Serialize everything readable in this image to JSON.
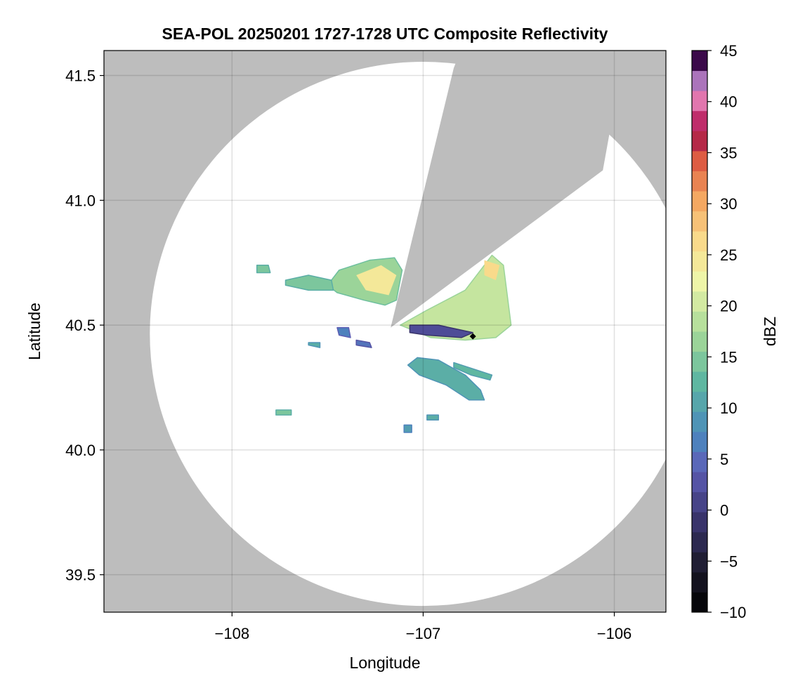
{
  "chart_data": {
    "type": "heatmap",
    "title": "SEA-POL 20250201 1727-1728 UTC Composite Reflectivity",
    "xlabel": "Longitude",
    "ylabel": "Latitude",
    "xlim": [
      -108.67,
      -105.73
    ],
    "ylim": [
      39.35,
      41.6
    ],
    "xticks": [
      -108,
      -107,
      -106
    ],
    "xtick_labels": [
      "−108",
      "−107",
      "−106"
    ],
    "yticks": [
      39.5,
      40.0,
      40.5,
      41.0,
      41.5
    ],
    "ytick_labels": [
      "39.5",
      "40.0",
      "40.5",
      "41.0",
      "41.5"
    ],
    "grid": true,
    "background_color": "#bdbdbd",
    "radar_site": {
      "lon": -106.74,
      "lat": 40.455,
      "marker": "diamond"
    },
    "coverage": {
      "center_lon": -107.0,
      "center_lat": 40.465,
      "radius_lon": 1.43,
      "radius_lat": 1.09,
      "blocked_sector": {
        "apex_lon": -107.17,
        "apex_lat": 40.49,
        "edge_points": [
          [
            -106.84,
            41.53
          ],
          [
            -106.06,
            41.12
          ]
        ]
      }
    },
    "colorbar": {
      "label": "dBZ",
      "min": -10,
      "max": 45,
      "step": 2,
      "ticks": [
        -10,
        -5,
        0,
        5,
        10,
        15,
        20,
        25,
        30,
        35,
        40,
        45
      ],
      "tick_labels": [
        "−10",
        "−5",
        "0",
        "5",
        "10",
        "15",
        "20",
        "25",
        "30",
        "35",
        "40",
        "45"
      ],
      "colormap": "Spectral_r"
    },
    "echoes": [
      {
        "name": "north-cell",
        "points": [
          [
            -107.5,
            40.66
          ],
          [
            -107.44,
            40.72
          ],
          [
            -107.28,
            40.76
          ],
          [
            -107.15,
            40.77
          ],
          [
            -107.11,
            40.72
          ],
          [
            -107.14,
            40.6
          ],
          [
            -107.2,
            40.58
          ],
          [
            -107.31,
            40.6
          ],
          [
            -107.45,
            40.63
          ]
        ],
        "dbz": 17,
        "core": {
          "points": [
            [
              -107.35,
              40.7
            ],
            [
              -107.22,
              40.74
            ],
            [
              -107.14,
              40.7
            ],
            [
              -107.18,
              40.62
            ],
            [
              -107.3,
              40.64
            ]
          ],
          "dbz": 25
        }
      },
      {
        "name": "northwest-tail",
        "points": [
          [
            -107.72,
            40.68
          ],
          [
            -107.6,
            40.7
          ],
          [
            -107.48,
            40.68
          ],
          [
            -107.47,
            40.64
          ],
          [
            -107.6,
            40.64
          ],
          [
            -107.72,
            40.66
          ]
        ],
        "dbz": 15
      },
      {
        "name": "northwest-isolated",
        "points": [
          [
            -107.87,
            40.74
          ],
          [
            -107.81,
            40.74
          ],
          [
            -107.8,
            40.71
          ],
          [
            -107.87,
            40.71
          ]
        ],
        "dbz": 15
      },
      {
        "name": "east-cell",
        "points": [
          [
            -107.12,
            40.5
          ],
          [
            -106.98,
            40.56
          ],
          [
            -106.78,
            40.64
          ],
          [
            -106.64,
            40.78
          ],
          [
            -106.58,
            40.74
          ],
          [
            -106.54,
            40.5
          ],
          [
            -106.62,
            40.45
          ],
          [
            -106.78,
            40.44
          ],
          [
            -106.96,
            40.45
          ]
        ],
        "dbz": 20,
        "core": {
          "points": [
            [
              -106.68,
              40.76
            ],
            [
              -106.6,
              40.74
            ],
            [
              -106.62,
              40.68
            ],
            [
              -106.68,
              40.7
            ]
          ],
          "dbz": 27
        }
      },
      {
        "name": "east-cell-weak-band",
        "points": [
          [
            -107.07,
            40.5
          ],
          [
            -106.92,
            40.5
          ],
          [
            -106.8,
            40.48
          ],
          [
            -106.74,
            40.47
          ],
          [
            -106.8,
            40.45
          ],
          [
            -106.98,
            40.46
          ],
          [
            -107.07,
            40.47
          ]
        ],
        "dbz": 2
      },
      {
        "name": "south-band",
        "points": [
          [
            -107.03,
            40.37
          ],
          [
            -106.92,
            40.36
          ],
          [
            -106.78,
            40.3
          ],
          [
            -106.7,
            40.24
          ],
          [
            -106.68,
            40.2
          ],
          [
            -106.76,
            40.2
          ],
          [
            -106.88,
            40.26
          ],
          [
            -107.02,
            40.3
          ],
          [
            -107.08,
            40.34
          ]
        ],
        "dbz": 12
      },
      {
        "name": "southeast-band",
        "points": [
          [
            -106.84,
            40.35
          ],
          [
            -106.72,
            40.32
          ],
          [
            -106.64,
            40.3
          ],
          [
            -106.65,
            40.28
          ],
          [
            -106.75,
            40.3
          ],
          [
            -106.84,
            40.33
          ]
        ],
        "dbz": 13
      },
      {
        "name": "west-fragment-1",
        "points": [
          [
            -107.45,
            40.49
          ],
          [
            -107.39,
            40.49
          ],
          [
            -107.38,
            40.45
          ],
          [
            -107.44,
            40.46
          ]
        ],
        "dbz": 7
      },
      {
        "name": "west-fragment-2",
        "points": [
          [
            -107.35,
            40.44
          ],
          [
            -107.28,
            40.43
          ],
          [
            -107.27,
            40.41
          ],
          [
            -107.35,
            40.42
          ]
        ],
        "dbz": 6
      },
      {
        "name": "west-fragment-3",
        "points": [
          [
            -107.6,
            40.43
          ],
          [
            -107.54,
            40.43
          ],
          [
            -107.54,
            40.41
          ],
          [
            -107.6,
            40.42
          ]
        ],
        "dbz": 12
      },
      {
        "name": "southwest-fragment",
        "points": [
          [
            -107.77,
            40.16
          ],
          [
            -107.69,
            40.16
          ],
          [
            -107.69,
            40.14
          ],
          [
            -107.77,
            40.14
          ]
        ],
        "dbz": 15
      },
      {
        "name": "south-fragment",
        "points": [
          [
            -106.98,
            40.14
          ],
          [
            -106.92,
            40.14
          ],
          [
            -106.92,
            40.12
          ],
          [
            -106.98,
            40.12
          ]
        ],
        "dbz": 12
      },
      {
        "name": "south-isolated",
        "points": [
          [
            -107.1,
            40.1
          ],
          [
            -107.06,
            40.1
          ],
          [
            -107.06,
            40.07
          ],
          [
            -107.1,
            40.07
          ]
        ],
        "dbz": 10
      }
    ]
  }
}
